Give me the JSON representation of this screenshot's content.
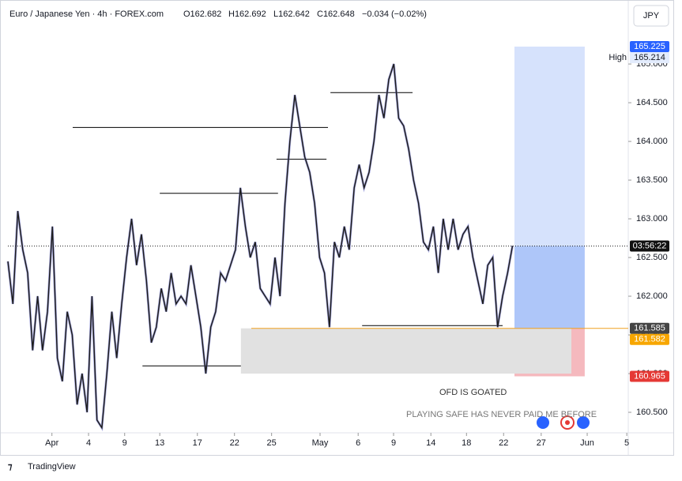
{
  "header": {
    "symbol": "Euro / Japanese Yen · 4h · FOREX.com",
    "open": "O162.682",
    "high": "H162.692",
    "low": "L162.642",
    "close": "C162.648",
    "change": "−0.034 (−0.02%)"
  },
  "currency": "JPY",
  "brand": "TradingView",
  "chart_data": {
    "type": "line",
    "series": [
      {
        "color": "#1e1e1e",
        "values": [
          162.45,
          161.9,
          163.1,
          162.6,
          162.3,
          161.3,
          162.0,
          161.3,
          161.8,
          162.9,
          161.2,
          160.9,
          161.8,
          161.5,
          160.6,
          161.0,
          160.5,
          162.0,
          160.4,
          160.3,
          161.0,
          161.8,
          161.2,
          161.9,
          162.5,
          163.0,
          162.4,
          162.8,
          162.2,
          161.4,
          161.6,
          162.1,
          161.8,
          162.3,
          161.9,
          162.0,
          161.9,
          162.4,
          162.0,
          161.6,
          161.0,
          161.6,
          161.8,
          162.3,
          162.2,
          162.4,
          162.6,
          163.4,
          162.9,
          162.5,
          162.7,
          162.1,
          162.0,
          161.9,
          162.5,
          162.0,
          163.2,
          164.0,
          164.6,
          164.2,
          163.8,
          163.6,
          163.2,
          162.5,
          162.3,
          161.6,
          162.7,
          162.5,
          162.9,
          162.6,
          163.4,
          163.7,
          163.4,
          163.6,
          164.0,
          164.6,
          164.3,
          164.8,
          165.0,
          164.3,
          164.2,
          163.9,
          163.5,
          163.2,
          162.7,
          162.6,
          162.9,
          162.3,
          163.0,
          162.6,
          163.0,
          162.6,
          162.8,
          162.9,
          162.5,
          162.2,
          161.9,
          162.4,
          162.5,
          161.6,
          162.0,
          162.3,
          162.65
        ]
      }
    ],
    "xlim": [
      0,
      125.4
    ],
    "ylim": [
      160.235,
      165.725
    ],
    "xticks": [
      {
        "value": 8.9,
        "label": "Apr"
      },
      {
        "value": 16.3,
        "label": "4"
      },
      {
        "value": 23.6,
        "label": "9"
      },
      {
        "value": 30.7,
        "label": "13"
      },
      {
        "value": 38.3,
        "label": "17"
      },
      {
        "value": 45.8,
        "label": "22"
      },
      {
        "value": 53.3,
        "label": "25"
      },
      {
        "value": 63.1,
        "label": "May"
      },
      {
        "value": 70.8,
        "label": "6"
      },
      {
        "value": 77.96,
        "label": "9"
      },
      {
        "value": 85.5,
        "label": "14"
      },
      {
        "value": 92.7,
        "label": "18"
      },
      {
        "value": 100.2,
        "label": "22"
      },
      {
        "value": 107.8,
        "label": "27"
      },
      {
        "value": 117.1,
        "label": "Jun"
      },
      {
        "value": 125.1,
        "label": "5"
      }
    ],
    "yticks": [
      {
        "value": 160.5,
        "label": "160.500"
      },
      {
        "value": 161,
        "label": "161.000"
      },
      {
        "value": 161.5,
        "label": "161.500"
      },
      {
        "value": 162,
        "label": "162.000"
      },
      {
        "value": 162.5,
        "label": "162.500"
      },
      {
        "value": 163,
        "label": "163.000"
      },
      {
        "value": 163.5,
        "label": "163.500"
      },
      {
        "value": 164,
        "label": "164.000"
      },
      {
        "value": 164.5,
        "label": "164.500"
      },
      {
        "value": 165,
        "label": "165.000"
      }
    ],
    "levels": [
      {
        "value": 164.18,
        "from": 13.1,
        "to": 64.7
      },
      {
        "value": 163.77,
        "from": 54.3,
        "to": 64.4
      },
      {
        "value": 163.33,
        "from": 30.7,
        "to": 54.6
      },
      {
        "value": 164.63,
        "from": 65.2,
        "to": 81.8
      },
      {
        "value": 161.1,
        "from": 27.2,
        "to": 47.1
      },
      {
        "value": 161.62,
        "from": 71.6,
        "to": 100
      }
    ],
    "zones": [
      {
        "color": "#d6e2fc",
        "top": 165.225,
        "bottom": 162.648,
        "from": 102.4,
        "to": 116.6
      },
      {
        "color": "#aec6f9",
        "top": 162.648,
        "bottom": 161.585,
        "from": 102.4,
        "to": 116.6
      },
      {
        "color": "#f5b9be",
        "top": 161.585,
        "bottom": 160.965,
        "from": 102.4,
        "to": 116.6
      },
      {
        "color": "#e1e1e1",
        "top": 161.585,
        "bottom": 161.0,
        "from": 47.1,
        "to": 113.9
      }
    ],
    "support": {
      "value": 161.585,
      "from": 49.2,
      "color": "#f0a020"
    },
    "current": {
      "price": 162.648,
      "countdown": "03:56:22"
    },
    "price_tags": [
      {
        "value": 165.225,
        "label": "165.225",
        "color": "#2962ff"
      },
      {
        "value": 161.585,
        "label": "161.585",
        "color": "#454545"
      },
      {
        "value": 161.582,
        "label": "161.582",
        "color": "#f7a600"
      },
      {
        "value": 160.965,
        "label": "160.965",
        "color": "#e53935"
      }
    ],
    "high_marker": {
      "name": "High",
      "value": 165.214,
      "label": "165.214"
    },
    "annotations": [
      "OFD IS GOATED",
      "PLAYING SAFE HAS NEVER PAID ME BEFORE"
    ]
  }
}
